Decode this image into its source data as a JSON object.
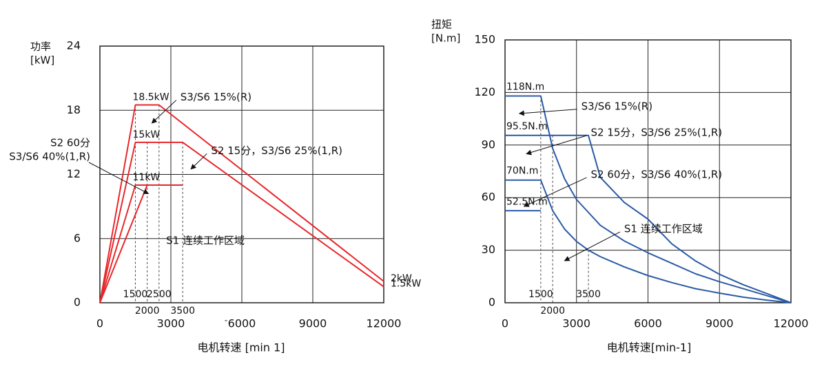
{
  "chart_data": [
    {
      "type": "line",
      "title": "",
      "ylabel_lines": [
        "功率",
        "[kW]"
      ],
      "xlabel": "电机转速 [min 1]",
      "x_ticks": [
        {
          "value": 0,
          "label": "0"
        },
        {
          "value": 3000,
          "label": "3000"
        },
        {
          "value": 6000,
          "label": "6000"
        },
        {
          "value": 9000,
          "label": "9000"
        },
        {
          "value": 12000,
          "label": "12000"
        }
      ],
      "y_ticks": [
        {
          "value": 0,
          "label": "0"
        },
        {
          "value": 6,
          "label": "6"
        },
        {
          "value": 12,
          "label": "12"
        },
        {
          "value": 18,
          "label": "18"
        },
        {
          "value": 24,
          "label": "24"
        }
      ],
      "xlim": [
        0,
        12000
      ],
      "ylim": [
        0,
        24
      ],
      "grid": true,
      "series": [
        {
          "x": [
            0,
            1500,
            2500,
            12000
          ],
          "y": [
            0,
            18.5,
            18.5,
            2
          ],
          "color": "#e8262a"
        },
        {
          "x": [
            0,
            1500,
            3500,
            12000
          ],
          "y": [
            0,
            15,
            15,
            1.5
          ],
          "color": "#e8262a"
        },
        {
          "x": [
            0,
            1500,
            3500
          ],
          "y": [
            0,
            11,
            11
          ],
          "color": "#e8262a"
        },
        {
          "x": [
            0,
            2000
          ],
          "y": [
            0,
            11
          ],
          "color": "#e8262a"
        }
      ],
      "guides": [
        {
          "x": 1500,
          "y_top": 18.5
        },
        {
          "x": 2000,
          "y_top": 15
        },
        {
          "x": 2500,
          "y_top": 18.5
        },
        {
          "x": 3500,
          "y_top": 15
        }
      ],
      "extra_tick_labels": [
        {
          "x": 1500,
          "text": "1500",
          "row": 1
        },
        {
          "x": 2500,
          "text": "2500",
          "row": 1
        },
        {
          "x": 2000,
          "text": "2000",
          "row": 2
        },
        {
          "x": 3500,
          "text": "3500",
          "row": 2
        }
      ],
      "stray_mark": "-",
      "annotations": [
        {
          "x": 1500,
          "y": 18.5,
          "text": "18.5kW",
          "role": "above"
        },
        {
          "x": 1500,
          "y": 15,
          "text": "15kW",
          "role": "above"
        },
        {
          "x": 1500,
          "y": 11,
          "text": "11kW",
          "role": "above"
        },
        {
          "x": 12000,
          "y": 2,
          "text": "2kW",
          "role": "end"
        },
        {
          "x": 12000,
          "y": 1.5,
          "text": "1.5kW",
          "role": "end"
        },
        {
          "text": "S3/S6 15%(R)",
          "label_x": 3400,
          "label_y": 19.2,
          "arrow_to": [
            2200,
            16.8
          ]
        },
        {
          "text": "S2 15分，S3/S6 25%(1,R)",
          "label_x": 4700,
          "label_y": 14.2,
          "arrow_to": [
            3850,
            12.5
          ]
        },
        {
          "text": "S1 连续工作区域",
          "label_x": 2800,
          "label_y": 5.8
        }
      ],
      "outside_label_lines": [
        "S2 60分",
        "S3/S6 40%(1,R)"
      ],
      "outside_arrow_to": [
        2050,
        10.2
      ]
    },
    {
      "type": "line",
      "title": "",
      "ylabel_lines": [
        "扭矩",
        "[N.m]"
      ],
      "xlabel": "电机转速[min-1]",
      "x_ticks": [
        {
          "value": 0,
          "label": "0"
        },
        {
          "value": 3000,
          "label": "3000"
        },
        {
          "value": 6000,
          "label": "6000"
        },
        {
          "value": 9000,
          "label": "9000"
        },
        {
          "value": 12000,
          "label": "12000"
        }
      ],
      "y_ticks": [
        {
          "value": 0,
          "label": "0"
        },
        {
          "value": 30,
          "label": "30"
        },
        {
          "value": 60,
          "label": "60"
        },
        {
          "value": 90,
          "label": "90"
        },
        {
          "value": 120,
          "label": "120"
        },
        {
          "value": 150,
          "label": "150"
        }
      ],
      "xlim": [
        0,
        12000
      ],
      "ylim": [
        0,
        150
      ],
      "grid": true,
      "series": [
        {
          "x": [
            0,
            1500,
            2000,
            2500,
            3000,
            4000,
            5000,
            6000,
            7000,
            8000,
            9000,
            10000,
            11000,
            12000
          ],
          "y": [
            118,
            118,
            88,
            70.7,
            58.9,
            44.2,
            35.3,
            28.5,
            22.5,
            16.5,
            12,
            8,
            4,
            0
          ],
          "color": "#2a5aa5"
        },
        {
          "x": [
            0,
            1500,
            2000,
            3000,
            3500,
            4000,
            5000,
            6000,
            7000,
            8000,
            9000,
            10000,
            11000,
            12000
          ],
          "y": [
            95.5,
            95.5,
            95.5,
            95.5,
            95.5,
            71.6,
            57.3,
            47.7,
            33.6,
            23.8,
            16.2,
            10.3,
            5.2,
            0
          ],
          "color": "#2a5aa5"
        },
        {
          "x": [
            0,
            1500,
            2000,
            2500,
            3000,
            3500,
            4000,
            5000,
            6000,
            7000,
            8000,
            9000,
            10000,
            11000,
            12000
          ],
          "y": [
            70,
            70,
            52.5,
            42,
            35,
            30,
            26.3,
            20.5,
            15.5,
            11.5,
            8,
            5.5,
            3.2,
            1.5,
            0
          ],
          "color": "#2a5aa5"
        },
        {
          "x": [
            0,
            1500
          ],
          "y": [
            52.5,
            52.5
          ],
          "color": "#2a5aa5"
        }
      ],
      "guides": [
        {
          "x": 1500,
          "y_top": 118
        },
        {
          "x": 2000,
          "y_top": 95.5
        },
        {
          "x": 3500,
          "y_top": 30
        }
      ],
      "extra_tick_labels": [
        {
          "x": 1500,
          "text": "1500",
          "row": 1
        },
        {
          "x": 3500,
          "text": "3500",
          "row": 1
        },
        {
          "x": 2000,
          "text": "2000",
          "row": 2
        }
      ],
      "value_labels": [
        {
          "y": 118,
          "text": "118N.m"
        },
        {
          "y": 95.5,
          "text": "95.5N.m"
        },
        {
          "y": 70,
          "text": "70N.m"
        },
        {
          "y": 52.5,
          "text": "52.5N.m"
        }
      ],
      "annotations": [
        {
          "text": "S3/S6 15%(R)",
          "label_x": 3200,
          "label_y": 112,
          "arrow_to": [
            600,
            108
          ]
        },
        {
          "text": "S2 15分，S3/S6 25%(1,R)",
          "label_x": 3600,
          "label_y": 97,
          "arrow_to": [
            900,
            85
          ]
        },
        {
          "text": "S2 60分，S3/S6 40%(1,R)",
          "label_x": 3600,
          "label_y": 73,
          "arrow_to": [
            800,
            55
          ]
        },
        {
          "text": "S1 连续工作区域",
          "label_x": 5000,
          "label_y": 42,
          "arrow_to": [
            2500,
            24
          ]
        }
      ]
    }
  ]
}
